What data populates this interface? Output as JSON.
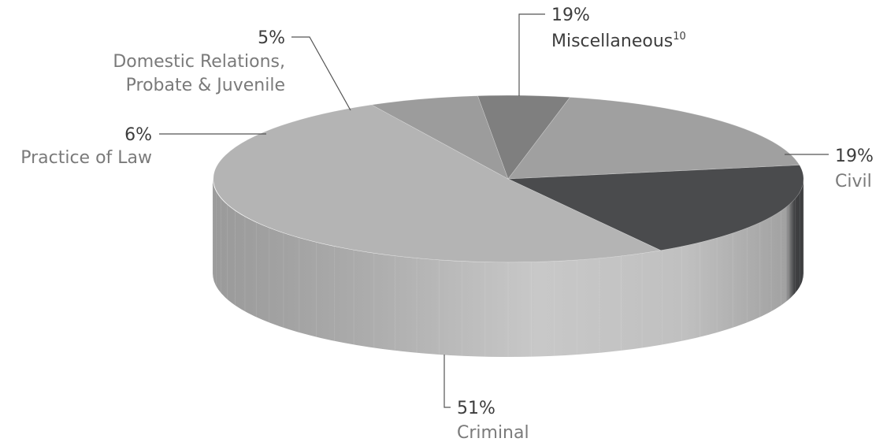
{
  "chart_data": {
    "type": "pie",
    "style": "3d",
    "slices": [
      {
        "key": "criminal",
        "pct": "51%",
        "value": 51,
        "label": "Criminal",
        "color": "#b4b4b4"
      },
      {
        "key": "civil",
        "pct": "19%",
        "value": 19,
        "label": "Civil",
        "color": "#4a4b4d"
      },
      {
        "key": "misc",
        "pct": "19%",
        "value": 19,
        "label": "Miscellaneous",
        "sup": "10",
        "color": "#a0a0a0"
      },
      {
        "key": "domestic",
        "pct": "5%",
        "value": 5,
        "label_lines": [
          "Domestic Relations,",
          "Probate & Juvenile"
        ],
        "color": "#7f7f7f"
      },
      {
        "key": "practice",
        "pct": "6%",
        "value": 6,
        "label": "Practice of Law",
        "color": "#9c9c9c"
      }
    ]
  }
}
